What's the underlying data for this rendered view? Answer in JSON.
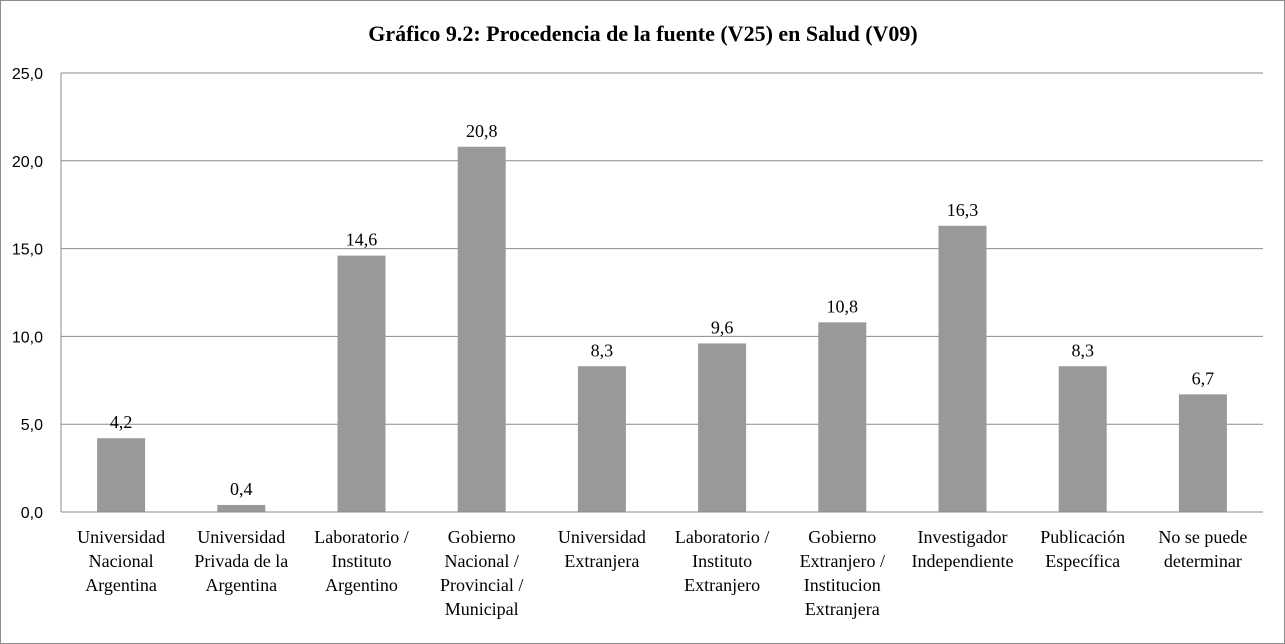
{
  "chart_data": {
    "type": "bar",
    "title": "Gráfico 9.2: Procedencia de la fuente (V25) en Salud (V09)",
    "xlabel": "",
    "ylabel": "",
    "ylim": [
      0,
      25
    ],
    "yticks": [
      "0,0",
      "5,0",
      "10,0",
      "15,0",
      "20,0",
      "25,0"
    ],
    "grid": true,
    "legend": "none",
    "bar_color": "#999999",
    "categories": [
      [
        "Universidad",
        "Nacional",
        "Argentina"
      ],
      [
        "Universidad",
        "Privada de la",
        "Argentina"
      ],
      [
        "Laboratorio /",
        "Instituto",
        "Argentino"
      ],
      [
        "Gobierno",
        "Nacional /",
        "Provincial /",
        "Municipal"
      ],
      [
        "Universidad",
        "Extranjera"
      ],
      [
        "Laboratorio /",
        "Instituto",
        "Extranjero"
      ],
      [
        "Gobierno",
        "Extranjero /",
        "Institucion",
        "Extranjera"
      ],
      [
        "Investigador",
        "Independiente"
      ],
      [
        "Publicación",
        "Específica"
      ],
      [
        "No se puede",
        "determinar"
      ]
    ],
    "values": [
      4.2,
      0.4,
      14.6,
      20.8,
      8.3,
      9.6,
      10.8,
      16.3,
      8.3,
      6.7
    ],
    "value_labels": [
      "4,2",
      "0,4",
      "14,6",
      "20,8",
      "8,3",
      "9,6",
      "10,8",
      "16,3",
      "8,3",
      "6,7"
    ]
  }
}
